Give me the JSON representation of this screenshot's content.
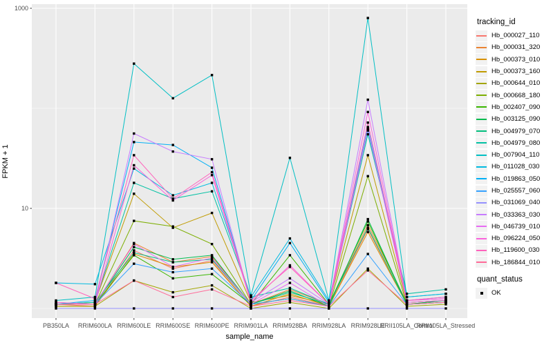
{
  "figure": {
    "y_axis_title": "FPKM + 1",
    "x_axis_title": "sample_name",
    "legend_color": {
      "title": "tracking_id"
    },
    "legend_shape": {
      "title": "quant_status",
      "items": [
        {
          "label": "OK"
        }
      ]
    },
    "panel_color": "#EBEBEB",
    "grid_color": "#FFFFFF",
    "tick_text_color": "#4D4D4D",
    "point_color": "#000000"
  },
  "chart_data": {
    "type": "line",
    "title": "",
    "xlabel": "sample_name",
    "ylabel": "FPKM + 1",
    "y_scale": "log10",
    "ylim": [
      0.8,
      1150
    ],
    "y_ticks": [
      {
        "label": "1000",
        "value": 1000
      },
      {
        "label": "10",
        "value": 10
      }
    ],
    "y_minor_gridlines": [
      100,
      1
    ],
    "grid": true,
    "legend_position": "right",
    "marker": "black-point",
    "quant_status": "OK",
    "categories": [
      "PB350LA",
      "RRIM600LA",
      "RRIM600LE",
      "RRIM600SE",
      "RRIM600PE",
      "RRIM901LA",
      "RRIM928BA",
      "RRIM928LA",
      "RRIM928LE",
      "RRII105LA_Control",
      "RRII105LA_Stressed"
    ],
    "series": [
      {
        "name": "Hb_000027_110",
        "color": "#F8766D",
        "values": [
          1.1,
          1.05,
          3.8,
          2.5,
          3.0,
          1.05,
          1.3,
          1.05,
          6.2,
          1.1,
          1.15
        ]
      },
      {
        "name": "Hb_000031_320",
        "color": "#EA8331",
        "values": [
          1.15,
          1.1,
          4.5,
          2.9,
          3.3,
          1.1,
          1.55,
          1.1,
          6.8,
          1.15,
          1.2
        ]
      },
      {
        "name": "Hb_000373_010",
        "color": "#D89000",
        "values": [
          1.05,
          1.05,
          3.5,
          2.6,
          2.9,
          1.05,
          1.4,
          1.05,
          5.8,
          1.1,
          1.15
        ]
      },
      {
        "name": "Hb_000373_160",
        "color": "#C09B00",
        "values": [
          1.1,
          1.15,
          14.0,
          6.4,
          9.0,
          1.15,
          1.35,
          1.1,
          34.0,
          1.15,
          1.2
        ]
      },
      {
        "name": "Hb_000644_010",
        "color": "#A3A500",
        "values": [
          1.05,
          1.05,
          1.9,
          1.45,
          1.7,
          1.0,
          1.15,
          1.0,
          2.5,
          1.05,
          1.1
        ]
      },
      {
        "name": "Hb_000668_180",
        "color": "#7CAE00",
        "values": [
          1.1,
          1.1,
          7.5,
          6.6,
          4.4,
          1.1,
          1.25,
          1.05,
          21.0,
          1.1,
          1.2
        ]
      },
      {
        "name": "Hb_002407_090",
        "color": "#39B600",
        "values": [
          1.1,
          1.1,
          3.4,
          2.0,
          2.2,
          1.1,
          3.4,
          1.1,
          7.4,
          1.1,
          1.15
        ]
      },
      {
        "name": "Hb_003125_090",
        "color": "#00BB4E",
        "values": [
          1.1,
          1.1,
          4.1,
          3.1,
          3.4,
          1.1,
          1.5,
          1.05,
          7.8,
          1.1,
          1.2
        ]
      },
      {
        "name": "Hb_004979_070",
        "color": "#00BF7D",
        "values": [
          1.1,
          1.15,
          3.6,
          2.9,
          3.1,
          1.1,
          1.45,
          1.1,
          6.4,
          1.1,
          1.15
        ]
      },
      {
        "name": "Hb_004979_080",
        "color": "#00C1A3",
        "values": [
          1.1,
          1.15,
          18.0,
          12.5,
          14.8,
          1.3,
          1.6,
          1.1,
          55.0,
          1.4,
          1.55
        ]
      },
      {
        "name": "Hb_007904_110",
        "color": "#00BFC4",
        "values": [
          1.2,
          1.3,
          280,
          126,
          215,
          1.35,
          32,
          1.2,
          800,
          1.3,
          1.4
        ]
      },
      {
        "name": "Hb_011028_030",
        "color": "#00BAE0",
        "values": [
          1.8,
          1.75,
          25,
          13.5,
          18,
          1.3,
          5.0,
          1.2,
          60,
          1.3,
          1.4
        ]
      },
      {
        "name": "Hb_019863_050",
        "color": "#00B0F6",
        "values": [
          1.1,
          1.2,
          46,
          43,
          25.5,
          1.2,
          4.5,
          1.15,
          65,
          1.2,
          1.3
        ]
      },
      {
        "name": "Hb_025557_060",
        "color": "#35A2FF",
        "values": [
          1.1,
          1.1,
          2.8,
          2.3,
          2.5,
          1.1,
          1.25,
          1.05,
          3.5,
          1.1,
          1.15
        ]
      },
      {
        "name": "Hb_031069_040",
        "color": "#9590FF",
        "values": [
          1.0,
          1.0,
          1.0,
          1.0,
          1.0,
          1.0,
          1.0,
          1.0,
          1.0,
          1.0,
          1.0
        ]
      },
      {
        "name": "Hb_033363_030",
        "color": "#C77CFF",
        "values": [
          1.1,
          1.1,
          56,
          37,
          31,
          1.15,
          2.0,
          1.1,
          122,
          1.2,
          1.25
        ]
      },
      {
        "name": "Hb_046739_010",
        "color": "#E76BF3",
        "values": [
          1.1,
          1.1,
          4.4,
          2.6,
          3.2,
          1.1,
          1.8,
          1.05,
          62,
          1.15,
          1.2
        ]
      },
      {
        "name": "Hb_096224_050",
        "color": "#FA62DB",
        "values": [
          1.15,
          1.1,
          27,
          12,
          21.5,
          1.15,
          2.7,
          1.1,
          92,
          1.2,
          1.25
        ]
      },
      {
        "name": "Hb_119600_030",
        "color": "#FF62BC",
        "values": [
          1.8,
          1.25,
          34,
          12.5,
          23,
          1.2,
          2.6,
          1.1,
          72,
          1.2,
          1.3
        ]
      },
      {
        "name": "Hb_186844_010",
        "color": "#FF6A98",
        "values": [
          1.1,
          1.1,
          1.9,
          1.3,
          1.55,
          1.05,
          1.2,
          1.05,
          2.4,
          1.1,
          1.15
        ]
      }
    ]
  }
}
